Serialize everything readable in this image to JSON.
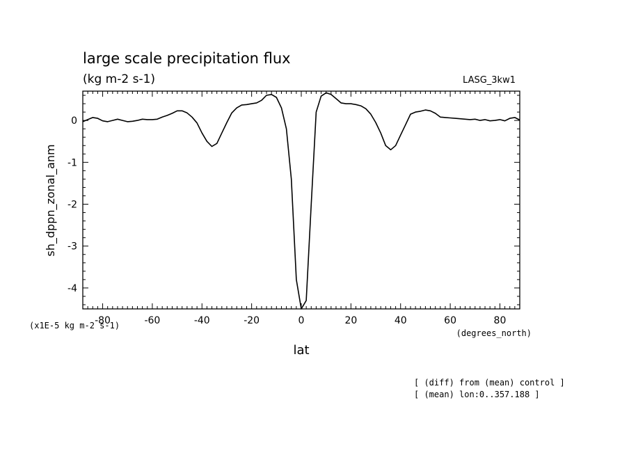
{
  "chart_data": {
    "type": "line",
    "title": "large scale precipitation flux",
    "subtitle": "(kg m-2 s-1)",
    "experiment_label": "LASG_3kw1",
    "xlabel": "lat",
    "x_units": "(degrees_north)",
    "ylabel": "sh_dppn_zonal_anm",
    "y_scale_note": "(x1E-5 kg m-2 s-1)",
    "xlim": [
      -88,
      88
    ],
    "ylim": [
      -4.5,
      0.7
    ],
    "x_ticks": [
      -80,
      -60,
      -40,
      -20,
      0,
      20,
      40,
      60,
      80
    ],
    "x_tick_labels": [
      "-80",
      "-60",
      "-40",
      "-20",
      "0",
      "20",
      "40",
      "60",
      "80"
    ],
    "y_ticks": [
      0,
      -1,
      -2,
      -3,
      -4
    ],
    "y_tick_labels": [
      "0",
      "-1",
      "-2",
      "-3",
      "-4"
    ],
    "grid": false,
    "series": [
      {
        "x": [
          -88,
          -86,
          -84,
          -82,
          -80,
          -78,
          -76,
          -74,
          -72,
          -70,
          -68,
          -66,
          -64,
          -62,
          -60,
          -58,
          -56,
          -54,
          -52,
          -50,
          -48,
          -46,
          -44,
          -42,
          -40,
          -38,
          -36,
          -34,
          -32,
          -30,
          -28,
          -26,
          -24,
          -22,
          -20,
          -18,
          -16,
          -14,
          -12,
          -10,
          -8,
          -6,
          -4,
          -2,
          0,
          2,
          4,
          6,
          8,
          10,
          12,
          14,
          16,
          18,
          20,
          22,
          24,
          26,
          28,
          30,
          32,
          34,
          36,
          38,
          40,
          42,
          44,
          46,
          48,
          50,
          52,
          54,
          56,
          58,
          60,
          62,
          64,
          66,
          68,
          70,
          72,
          74,
          76,
          78,
          80,
          82,
          84,
          86,
          88
        ],
        "y": [
          -0.03,
          0.02,
          0.07,
          0.05,
          -0.01,
          -0.03,
          0.0,
          0.03,
          0.0,
          -0.03,
          -0.02,
          0.0,
          0.03,
          0.02,
          0.02,
          0.03,
          0.08,
          0.12,
          0.17,
          0.23,
          0.23,
          0.18,
          0.08,
          -0.06,
          -0.3,
          -0.5,
          -0.62,
          -0.55,
          -0.3,
          -0.05,
          0.18,
          0.3,
          0.37,
          0.38,
          0.4,
          0.42,
          0.48,
          0.6,
          0.62,
          0.55,
          0.3,
          -0.2,
          -1.4,
          -3.8,
          -4.5,
          -4.3,
          -2.0,
          0.2,
          0.58,
          0.66,
          0.62,
          0.52,
          0.42,
          0.4,
          0.4,
          0.38,
          0.35,
          0.28,
          0.15,
          -0.05,
          -0.3,
          -0.6,
          -0.7,
          -0.6,
          -0.35,
          -0.1,
          0.15,
          0.2,
          0.22,
          0.25,
          0.23,
          0.17,
          0.08,
          0.07,
          0.06,
          0.05,
          0.04,
          0.03,
          0.02,
          0.03,
          0.0,
          0.02,
          -0.01,
          0.0,
          0.02,
          -0.01,
          0.05,
          0.07,
          0.01
        ]
      }
    ],
    "notes": [
      "[ (diff) from (mean) control ]",
      "[ (mean) lon:0..357.188 ]"
    ]
  }
}
